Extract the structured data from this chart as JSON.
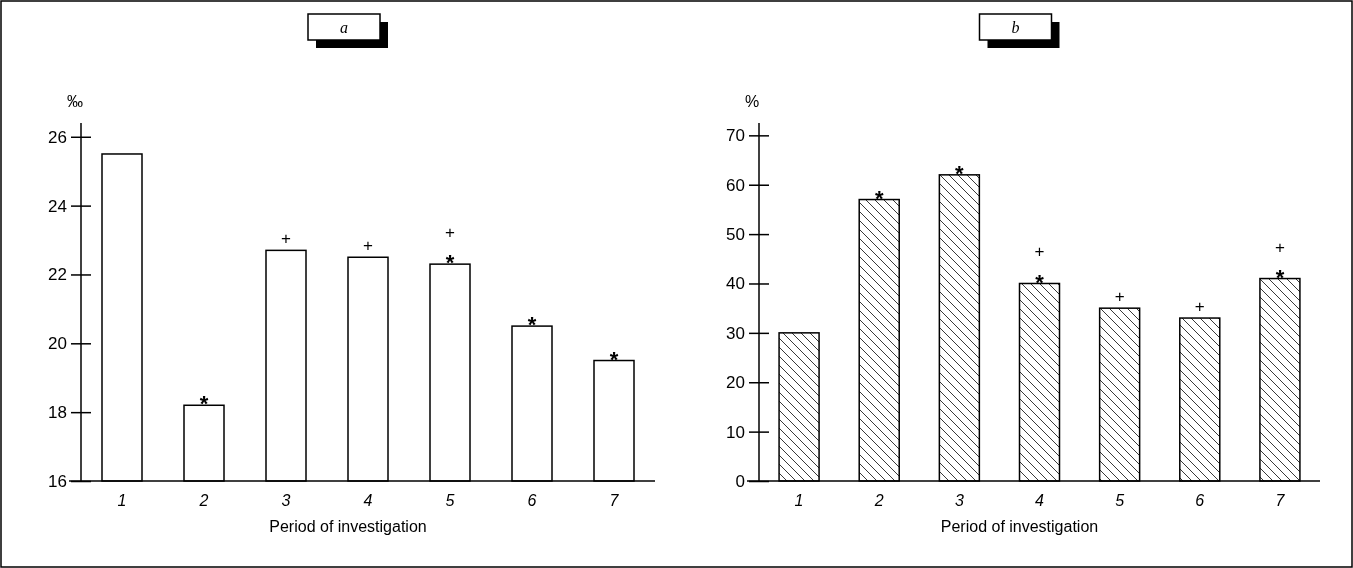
{
  "chart_data": [
    {
      "type": "bar",
      "title": "a",
      "ylabel": "‰",
      "xlabel": "Period of investigation",
      "categories": [
        "1",
        "2",
        "3",
        "4",
        "5",
        "6",
        "7"
      ],
      "values": [
        25.5,
        18.2,
        22.7,
        22.5,
        22.3,
        20.5,
        19.5
      ],
      "color": "#ffffff",
      "ylim": [
        16,
        26.4
      ],
      "yticks": [
        16,
        18,
        20,
        22,
        24,
        26
      ],
      "grid": false,
      "annotations": [
        {
          "text": "*",
          "x": "2",
          "y": 18.2
        },
        {
          "text": "+",
          "x": "3",
          "y": 22.7
        },
        {
          "text": "+",
          "x": "4",
          "y": 22.5
        },
        {
          "text": "*",
          "x": "5",
          "y": 22.3
        },
        {
          "text": "+",
          "x": "5",
          "y": 22.3
        },
        {
          "text": "*",
          "x": "6",
          "y": 20.5
        },
        {
          "text": "*",
          "x": "7",
          "y": 19.5
        }
      ]
    },
    {
      "type": "bar",
      "title": "b",
      "ylabel": "%",
      "xlabel": "Period of investigation",
      "categories": [
        "1",
        "2",
        "3",
        "4",
        "5",
        "6",
        "7"
      ],
      "values": [
        30,
        57,
        62,
        40,
        35,
        33,
        41
      ],
      "color": "#ffffff",
      "ylim": [
        0,
        72.5
      ],
      "yticks": [
        0,
        10,
        20,
        30,
        40,
        50,
        60,
        70
      ],
      "grid": false,
      "annotations": [
        {
          "text": "*",
          "x": "2",
          "y": 57
        },
        {
          "text": "*",
          "x": "3",
          "y": 62
        },
        {
          "text": "*",
          "x": "4",
          "y": 40
        },
        {
          "text": "+",
          "x": "4",
          "y": 40
        },
        {
          "text": "+",
          "x": "5",
          "y": 35
        },
        {
          "text": "+",
          "x": "6",
          "y": 33
        },
        {
          "text": "*",
          "x": "7",
          "y": 41
        },
        {
          "text": "+",
          "x": "7",
          "y": 41
        }
      ]
    }
  ]
}
